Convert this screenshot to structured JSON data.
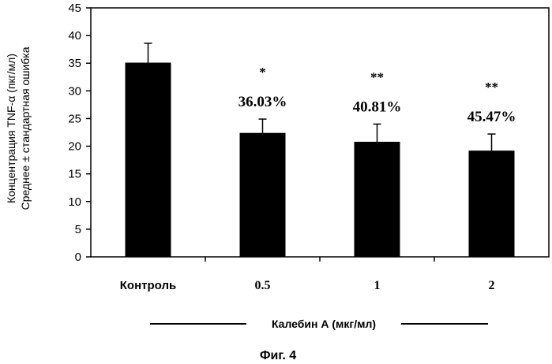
{
  "chart_data": {
    "type": "bar",
    "categories": [
      "Контроль",
      "0.5",
      "1",
      "2"
    ],
    "values": [
      35.1,
      22.4,
      20.8,
      19.2
    ],
    "errors": [
      3.5,
      2.5,
      3.2,
      3.0
    ],
    "significance": [
      "",
      "*",
      "**",
      "**"
    ],
    "reductions": [
      "",
      "36.03%",
      "40.81%",
      "45.47%"
    ],
    "ylim": [
      0,
      45
    ],
    "yticks": [
      "0",
      "5",
      "10",
      "15",
      "20",
      "25",
      "30",
      "35",
      "40",
      "45"
    ],
    "ylabel_line1": "Концентрация TNF-α (пкг/мл)",
    "ylabel_line2": "Среднее ± стандартная ошибка",
    "xlabel": "Калебин А (мкг/мл)",
    "caption": "Фиг. 4",
    "bar_color": "#000000",
    "grid": false
  }
}
